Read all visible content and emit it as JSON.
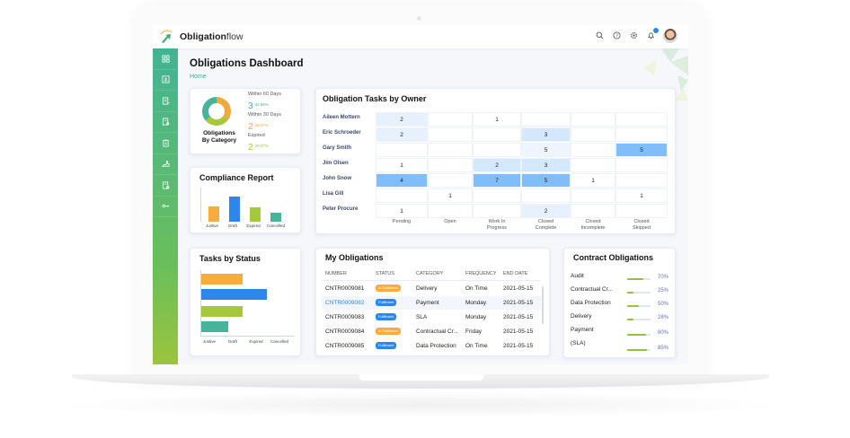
{
  "app": {
    "brand_bold": "Obligation",
    "brand_light": "flow"
  },
  "header": {
    "icons": [
      "search-icon",
      "help-icon",
      "settings-icon",
      "bell-icon",
      "avatar"
    ]
  },
  "sidebar": {
    "items": [
      "dashboard-icon",
      "contact-card-icon",
      "document-add-icon",
      "document-icon",
      "clipboard-icon",
      "hand-icon",
      "document-settings-icon",
      "key-icon"
    ]
  },
  "page": {
    "title": "Obligations Dashboard",
    "breadcrumb": "Home"
  },
  "category": {
    "title_line1": "Obligations",
    "title_line2": "By Category",
    "stats": [
      {
        "label": "Within 60 Days",
        "count": "3",
        "pct": "42.86%",
        "color": "#47b39a"
      },
      {
        "label": "Within 30 Days",
        "count": "2",
        "pct": "28.57%",
        "color": "#f2a93b"
      },
      {
        "label": "Expired",
        "count": "2",
        "pct": "28.57%",
        "color": "#a6c83b"
      }
    ]
  },
  "compliance": {
    "title": "Compliance Report",
    "labels": [
      "Justive",
      "Draft",
      "Expired",
      "Cancelled"
    ]
  },
  "tasks_status": {
    "title": "Tasks by Status",
    "labels": [
      "Justive",
      "Draft",
      "Expired",
      "Cancelled"
    ]
  },
  "owner": {
    "title": "Obligation Tasks by Owner",
    "owners": [
      "Aileen Mottern",
      "Eric Schroeder",
      "Gary Smith",
      "Jim Olsen",
      "John Snow",
      "Lisa Gill",
      "Peter  Procure"
    ],
    "columns": [
      "Pending",
      "Open",
      "Work In\nProgress",
      "Closed\nComplete",
      "Closed\nIncomplete",
      "Closed\nSkipped"
    ]
  },
  "my_obligations": {
    "title": "My Obligations",
    "headers": [
      "NUMBER",
      "STATUS",
      "CATEGORY",
      "FREQUENCY",
      "END DATE"
    ],
    "rows": [
      {
        "number": "CNTR0009081",
        "status": "In Fulfilment",
        "category": "Delivery",
        "frequency": "On Time",
        "end_date": "2021-05-15"
      },
      {
        "number": "CNTR0009082",
        "status": "Fulfilment",
        "category": "Payment",
        "frequency": "Monday",
        "end_date": "2021-05-15"
      },
      {
        "number": "CNTR0009083",
        "status": "Fulfilment",
        "category": "SLA",
        "frequency": "Monday",
        "end_date": "2021-05-15"
      },
      {
        "number": "CNTR0009084",
        "status": "In Fulfilment",
        "category": "Contractual Cr...",
        "frequency": "Friday",
        "end_date": "2021-05-15"
      },
      {
        "number": "CNTR0009085",
        "status": "Fulfilment",
        "category": "Data Protection",
        "frequency": "On Time",
        "end_date": "2021-05-15"
      }
    ]
  },
  "contract": {
    "title": "Contract Obligations",
    "items": [
      {
        "label": "Audit",
        "pct": "70%"
      },
      {
        "label": "Contractual Cr...",
        "pct": "25%"
      },
      {
        "label": "Data Protection",
        "pct": "50%"
      },
      {
        "label": "Delivery",
        "pct": "28%"
      },
      {
        "label": "Payment",
        "pct": "80%"
      },
      {
        "label": "(SLA)",
        "pct": "85%"
      }
    ]
  },
  "chart_data": [
    {
      "type": "pie",
      "title": "Obligations By Category",
      "categories": [
        "Within 60 Days",
        "Within 30 Days",
        "Expired"
      ],
      "values": [
        3,
        2,
        2
      ],
      "percentages": [
        42.86,
        28.57,
        28.57
      ]
    },
    {
      "type": "bar",
      "title": "Compliance Report",
      "categories": [
        "Justive",
        "Draft",
        "Expired",
        "Cancelled"
      ],
      "values": [
        18,
        28,
        17,
        11
      ],
      "colors": [
        "#f5ae3d",
        "#2f86ea",
        "#a6c83b",
        "#47b39a"
      ]
    },
    {
      "type": "bar",
      "orientation": "horizontal",
      "title": "Tasks by Status",
      "categories": [
        "Justive",
        "Draft",
        "Expired",
        "Cancelled"
      ],
      "values": [
        47,
        73,
        47,
        31
      ],
      "colors": [
        "#f5ae3d",
        "#2f86ea",
        "#a6c83b",
        "#47b39a"
      ]
    },
    {
      "type": "heatmap",
      "title": "Obligation Tasks by Owner",
      "rows": [
        "Aileen Mottern",
        "Eric Schroeder",
        "Gary Smith",
        "Jim Olsen",
        "John Snow",
        "Lisa Gill",
        "Peter  Procure"
      ],
      "columns": [
        "Pending",
        "Open",
        "Work In Progress",
        "Closed Complete",
        "Closed Incomplete",
        "Closed Skipped"
      ],
      "values": [
        [
          2,
          null,
          1,
          null,
          null,
          null
        ],
        [
          2,
          null,
          null,
          3,
          null,
          null
        ],
        [
          null,
          null,
          null,
          5,
          null,
          5
        ],
        [
          1,
          null,
          2,
          3,
          null,
          null
        ],
        [
          4,
          null,
          7,
          5,
          1,
          null
        ],
        [
          null,
          1,
          null,
          null,
          null,
          1
        ],
        [
          1,
          null,
          null,
          2,
          null,
          null
        ]
      ]
    },
    {
      "type": "bar",
      "orientation": "horizontal",
      "title": "Contract Obligations",
      "categories": [
        "Audit",
        "Contractual Cr...",
        "Data Protection",
        "Delivery",
        "Payment",
        "(SLA)"
      ],
      "values": [
        70,
        25,
        50,
        28,
        80,
        85
      ]
    }
  ]
}
